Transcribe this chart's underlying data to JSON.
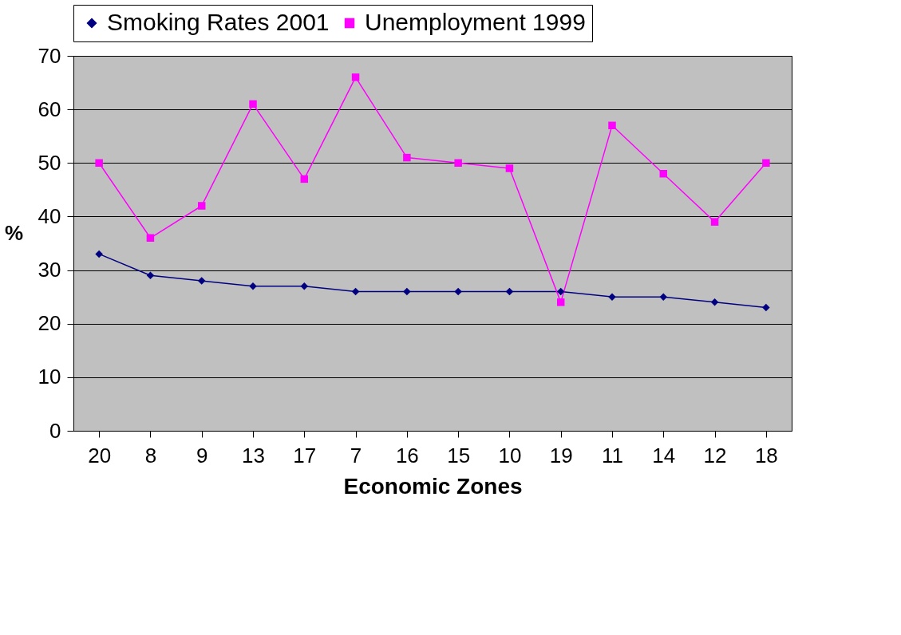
{
  "chart_data": {
    "type": "line",
    "xlabel": "Economic Zones",
    "ylabel": "%",
    "categories": [
      "20",
      "8",
      "9",
      "13",
      "17",
      "7",
      "16",
      "15",
      "10",
      "19",
      "11",
      "14",
      "12",
      "18"
    ],
    "series": [
      {
        "name": "Smoking Rates 2001",
        "color": "#000080",
        "marker": "diamond",
        "values": [
          33,
          29,
          28,
          27,
          27,
          26,
          26,
          26,
          26,
          26,
          25,
          25,
          24,
          23
        ]
      },
      {
        "name": "Unemployment 1999",
        "color": "#ff00ff",
        "marker": "square",
        "values": [
          50,
          36,
          42,
          61,
          47,
          66,
          51,
          50,
          49,
          24,
          57,
          48,
          39,
          50
        ]
      }
    ],
    "ylim": [
      0,
      70
    ],
    "yticks": [
      0,
      10,
      20,
      30,
      40,
      50,
      60,
      70
    ],
    "grid": "y",
    "legend": "top",
    "line_style": "solid"
  }
}
